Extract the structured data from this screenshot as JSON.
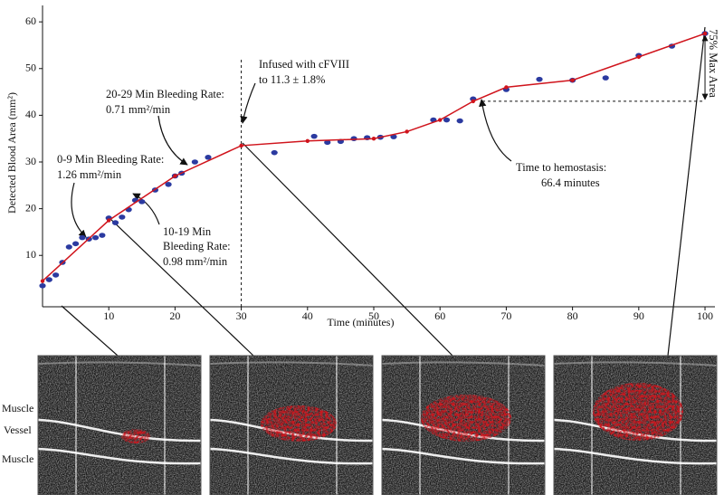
{
  "chart_data": {
    "type": "scatter",
    "xlabel": "Time (minutes)",
    "ylabel": "Detected Blood Area (mm²)",
    "xlim": [
      0,
      101.5
    ],
    "ylim": [
      -1,
      61
    ],
    "xticks": [
      10,
      20,
      30,
      40,
      50,
      60,
      70,
      80,
      90,
      100
    ],
    "yticks": [
      10,
      20,
      30,
      40,
      50,
      60
    ],
    "series": [
      {
        "color": "#2b3aa0",
        "mode": "markers",
        "x": [
          0,
          1,
          2,
          3,
          4,
          5,
          6,
          7,
          8,
          9,
          10,
          11,
          12,
          13,
          14,
          15,
          17,
          19,
          20,
          21,
          23,
          25,
          35,
          41,
          43,
          45,
          47,
          49,
          51,
          53,
          59,
          61,
          63,
          65,
          70,
          75,
          80,
          85,
          90,
          95,
          100
        ],
        "values": [
          3.5,
          4.8,
          5.8,
          8.5,
          11.8,
          12.5,
          13.8,
          13.5,
          13.8,
          14.3,
          18,
          17,
          18.2,
          19.8,
          21.8,
          21.5,
          24,
          25.2,
          27,
          27.6,
          30,
          31,
          32,
          35.5,
          34.2,
          34.4,
          35,
          35.2,
          35.3,
          35.4,
          39,
          39,
          38.8,
          43.5,
          45.5,
          47.7,
          47.5,
          48,
          52.8,
          54.8,
          57.5
        ]
      },
      {
        "color": "#d0141c",
        "mode": "lines+markers",
        "x": [
          0,
          10,
          20,
          30,
          40,
          50,
          55,
          60,
          65,
          70,
          80,
          90,
          100
        ],
        "values": [
          4.5,
          17.5,
          27,
          33.5,
          34.5,
          35,
          36.5,
          39,
          43,
          46,
          47.5,
          52.5,
          57.5
        ]
      }
    ],
    "infusion_time": 30,
    "hemostasis": {
      "time": 66.4,
      "area": 43
    },
    "annotations": [
      "Infused with cFVIII",
      "to 11.3 ± 1.8%",
      "20-29 Min Bleeding Rate:",
      "0.71 mm²/min",
      "0-9 Min Bleeding Rate:",
      "1.26 mm²/min",
      "10-19 Min",
      "Bleeding Rate:",
      "0.98 mm²/min",
      "Time to hemostasis:",
      "66.4 minutes",
      "75% Max Area"
    ],
    "panel_labels": [
      "Muscle",
      "Vessel",
      "Muscle"
    ]
  }
}
